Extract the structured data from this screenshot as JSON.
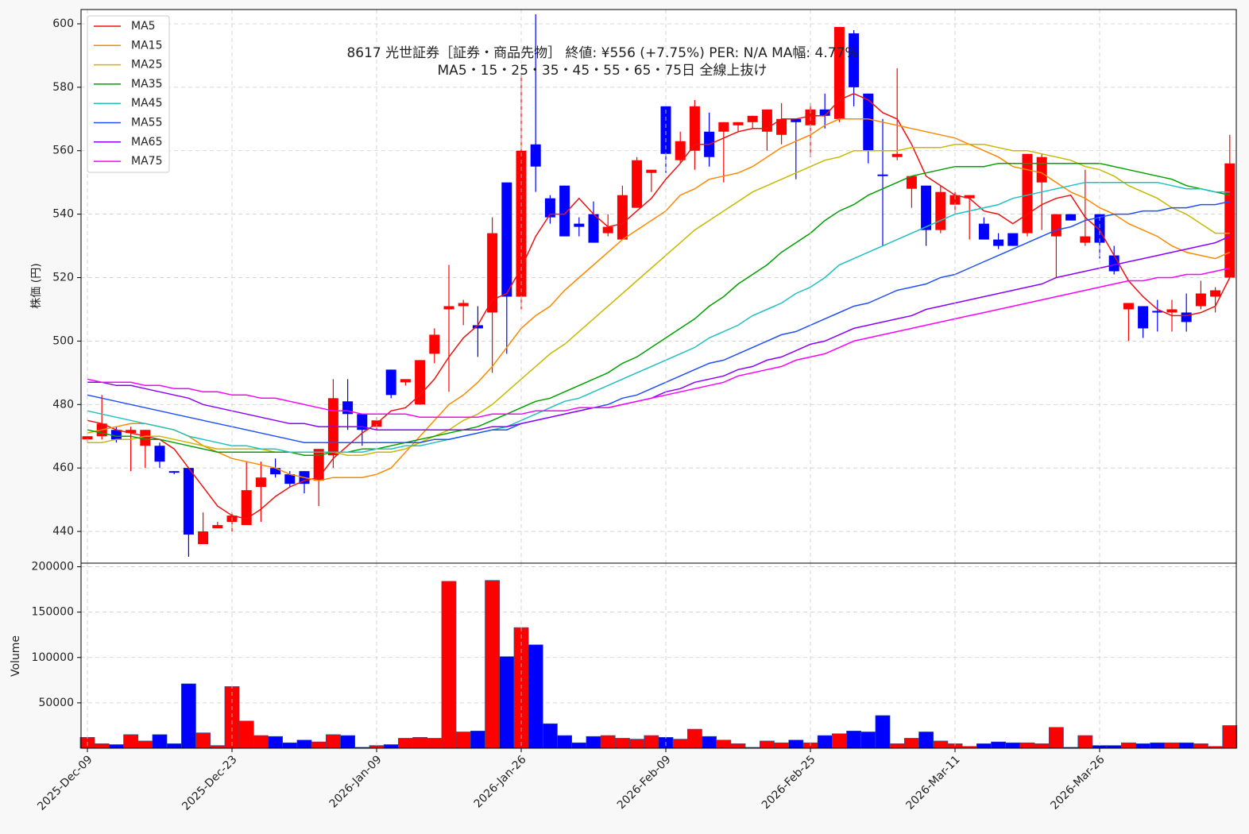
{
  "chart_data": [
    {
      "type": "candlestick",
      "title": "8617  光世証券［証券・商品先物］ 終値: ¥556 (+7.75%)  PER: N/A  MA幅: 4.77%",
      "subtitle": "MA5・15・25・35・45・55・65・75日 全線上抜け",
      "ylabel": "株価 (円)",
      "ylim": [
        430,
        604.5
      ],
      "yticks": [
        440,
        460,
        480,
        500,
        520,
        540,
        560,
        580,
        600
      ],
      "grid": true,
      "legend": "upper left",
      "up_color": "#ff0000",
      "down_color": "#0000ff",
      "open": [
        469,
        470,
        472,
        471,
        467,
        467,
        459,
        460,
        436,
        441,
        443,
        442,
        454,
        460,
        458,
        459,
        456,
        464,
        481,
        477,
        473,
        491,
        487,
        480,
        496,
        510,
        511,
        505,
        509,
        550,
        514,
        562,
        545,
        549,
        537,
        540,
        534,
        532,
        542,
        553,
        574,
        557,
        560,
        566,
        566,
        568,
        569,
        566,
        565,
        570,
        568,
        573,
        570,
        597,
        578,
        552.5,
        558,
        548,
        549,
        535,
        543,
        545,
        537,
        532,
        534,
        534,
        550,
        533,
        540,
        531,
        540,
        527,
        510,
        511,
        509.5,
        509,
        509,
        511,
        514,
        520
      ],
      "high": [
        470,
        483,
        473,
        473,
        472,
        468,
        459,
        460,
        446,
        443,
        446,
        462,
        462,
        463,
        459,
        459,
        466,
        488,
        488,
        477,
        476,
        491,
        488,
        494,
        504,
        524,
        513,
        511,
        539,
        550,
        584,
        603,
        546,
        549,
        539,
        544,
        540,
        549,
        558,
        554,
        574,
        566,
        576,
        572,
        569,
        569,
        571,
        573,
        575,
        570,
        575,
        578,
        599,
        598,
        578,
        570,
        586,
        552,
        549,
        549,
        547,
        546,
        539,
        534,
        534,
        559,
        559,
        540,
        540,
        554,
        540,
        530,
        512,
        511,
        513,
        513,
        515,
        519,
        517,
        565
      ],
      "low": [
        468,
        469,
        468,
        459,
        460,
        460,
        458,
        432,
        436,
        441,
        440,
        442,
        443,
        457,
        454,
        452,
        448,
        460,
        472,
        467,
        472,
        482,
        486,
        480,
        493,
        484,
        505,
        495,
        490,
        496,
        510,
        547,
        537,
        533,
        533,
        531,
        533,
        532,
        542,
        547,
        553,
        556,
        554,
        555,
        550,
        566,
        567,
        560,
        562,
        551,
        558,
        567,
        569,
        574,
        556,
        530,
        557,
        542,
        530,
        534,
        540,
        532,
        532,
        529,
        530,
        533,
        535,
        520,
        538,
        530,
        526,
        521,
        500,
        501,
        503,
        503,
        503,
        510,
        509,
        520
      ],
      "close": [
        470,
        474,
        469,
        472,
        472,
        462,
        458.5,
        439,
        440,
        442,
        445,
        453,
        457,
        458,
        455,
        455,
        466,
        482,
        477,
        472,
        475,
        483,
        488,
        494,
        502,
        511,
        512,
        504,
        534,
        514,
        560,
        555,
        539,
        533,
        536,
        531,
        536,
        546,
        557,
        554,
        559,
        563,
        574,
        558,
        569,
        569,
        571,
        573,
        570,
        569,
        573,
        571,
        599,
        580,
        560,
        552,
        559,
        552,
        535,
        547,
        546,
        546,
        532,
        530,
        530,
        559,
        558,
        540,
        538,
        533,
        531,
        522,
        512,
        504,
        509,
        510,
        506,
        515,
        516,
        556
      ],
      "series": [
        {
          "name": "MA5",
          "color": "#ee1111",
          "values": [
            475,
            474,
            472,
            471,
            470,
            469,
            466,
            460,
            454,
            448,
            445,
            444,
            447,
            451,
            454,
            456,
            457,
            463,
            467,
            471,
            474,
            478,
            479,
            483,
            488,
            495,
            501,
            505,
            513,
            515,
            523,
            533,
            540,
            540,
            545,
            540,
            536,
            537,
            541,
            545,
            551,
            556,
            562,
            562,
            564,
            566,
            567,
            567,
            570,
            570,
            571,
            571,
            576,
            578,
            576,
            572,
            570,
            562,
            552,
            549,
            546,
            545,
            541,
            540,
            537,
            540,
            543,
            545,
            546,
            539,
            535,
            527,
            519,
            514,
            510,
            508,
            508,
            509,
            511,
            520
          ]
        },
        {
          "name": "MA15",
          "color": "#ff8800",
          "values": [
            471,
            472,
            473,
            474,
            474,
            473,
            472,
            470,
            467,
            465,
            463,
            462,
            461,
            460,
            458,
            457,
            456,
            457,
            457,
            457,
            458,
            460,
            465,
            470,
            475,
            480,
            483,
            487,
            492,
            498,
            504,
            508,
            511,
            516,
            520,
            524,
            528,
            532,
            535,
            538,
            541,
            546,
            548,
            551,
            552,
            553,
            555,
            558,
            561,
            563,
            565,
            568,
            570,
            570,
            570,
            569,
            568,
            567,
            566,
            565,
            564,
            562,
            560,
            558,
            555,
            554,
            553,
            550,
            547,
            545,
            542,
            540,
            537,
            535,
            533,
            530,
            528,
            527,
            526,
            528
          ]
        },
        {
          "name": "MA25",
          "color": "#c8b800",
          "values": [
            468,
            468,
            469,
            469,
            470,
            470,
            469,
            468,
            467,
            466,
            466,
            466,
            466,
            465,
            465,
            465,
            465,
            465,
            464,
            464,
            465,
            465,
            466,
            468,
            470,
            472,
            475,
            477,
            480,
            484,
            488,
            492,
            496,
            499,
            503,
            507,
            511,
            515,
            519,
            523,
            527,
            531,
            535,
            538,
            541,
            544,
            547,
            549,
            551,
            553,
            555,
            557,
            558,
            560,
            560,
            560,
            560,
            561,
            561,
            561,
            562,
            562,
            562,
            561,
            560,
            560,
            559,
            558,
            557,
            555,
            554,
            552,
            549,
            547,
            545,
            542,
            540,
            537,
            534,
            534
          ]
        },
        {
          "name": "MA35",
          "color": "#00a000",
          "values": [
            472,
            471,
            470,
            470,
            469,
            469,
            468,
            467,
            466,
            465,
            465,
            465,
            465,
            465,
            465,
            464,
            464,
            465,
            465,
            466,
            466,
            467,
            468,
            469,
            470,
            471,
            472,
            473,
            475,
            477,
            479,
            481,
            482,
            484,
            486,
            488,
            490,
            493,
            495,
            498,
            501,
            504,
            507,
            511,
            514,
            518,
            521,
            524,
            528,
            531,
            534,
            538,
            541,
            543,
            546,
            548,
            550,
            552,
            553,
            554,
            555,
            555,
            555,
            556,
            556,
            556,
            556,
            556,
            556,
            556,
            556,
            555,
            554,
            553,
            552,
            551,
            549,
            548,
            547,
            546
          ]
        },
        {
          "name": "MA45",
          "color": "#20c0c0",
          "values": [
            478,
            477,
            476,
            475,
            474,
            473,
            472,
            470,
            469,
            468,
            467,
            467,
            466,
            466,
            465,
            465,
            465,
            465,
            465,
            465,
            466,
            466,
            467,
            467,
            468,
            469,
            470,
            471,
            472,
            473,
            475,
            477,
            479,
            481,
            482,
            484,
            486,
            488,
            490,
            492,
            494,
            496,
            498,
            501,
            503,
            505,
            508,
            510,
            512,
            515,
            517,
            520,
            524,
            526,
            528,
            530,
            532,
            534,
            536,
            538,
            540,
            541,
            542,
            543,
            545,
            546,
            547,
            548,
            549,
            550,
            550,
            550,
            550,
            550,
            550,
            549,
            548,
            548,
            547,
            547
          ]
        },
        {
          "name": "MA55",
          "color": "#1f4fff",
          "values": [
            483,
            482,
            481,
            480,
            479,
            478,
            477,
            476,
            475,
            474,
            473,
            472,
            471,
            470,
            469,
            468,
            468,
            468,
            468,
            468,
            468,
            468,
            468,
            468,
            469,
            469,
            470,
            471,
            472,
            472,
            474,
            475,
            476,
            477,
            478,
            479,
            480,
            482,
            483,
            485,
            487,
            489,
            491,
            493,
            494,
            496,
            498,
            500,
            502,
            503,
            505,
            507,
            509,
            511,
            512,
            514,
            516,
            517,
            518,
            520,
            521,
            523,
            525,
            527,
            529,
            531,
            533,
            535,
            536,
            538,
            539,
            540,
            540,
            541,
            541,
            542,
            542,
            543,
            543,
            544
          ]
        },
        {
          "name": "MA65",
          "color": "#8a00ff",
          "values": [
            487,
            487,
            486,
            486,
            485,
            484,
            483,
            482,
            480,
            479,
            478,
            477,
            476,
            475,
            474,
            474,
            473,
            473,
            473,
            473,
            472,
            472,
            472,
            472,
            472,
            472,
            472,
            472,
            473,
            473,
            474,
            475,
            476,
            477,
            478,
            479,
            479,
            480,
            481,
            482,
            484,
            485,
            487,
            488,
            489,
            491,
            492,
            494,
            495,
            497,
            499,
            500,
            502,
            504,
            505,
            506,
            507,
            508,
            510,
            511,
            512,
            513,
            514,
            515,
            516,
            517,
            518,
            520,
            521,
            522,
            523,
            524,
            525,
            526,
            527,
            528,
            529,
            530,
            531,
            533
          ]
        },
        {
          "name": "MA75",
          "color": "#ff00ff",
          "values": [
            488,
            487,
            487,
            487,
            486,
            486,
            485,
            485,
            484,
            484,
            483,
            483,
            482,
            482,
            481,
            480,
            479,
            478,
            478,
            477,
            477,
            477,
            477,
            476,
            476,
            476,
            476,
            476,
            477,
            477,
            477,
            478,
            478,
            478,
            479,
            479,
            479,
            480,
            481,
            482,
            483,
            484,
            485,
            486,
            487,
            489,
            490,
            491,
            492,
            494,
            495,
            496,
            498,
            500,
            501,
            502,
            503,
            504,
            505,
            506,
            507,
            508,
            509,
            510,
            511,
            512,
            513,
            514,
            515,
            516,
            517,
            518,
            519,
            519,
            520,
            520,
            521,
            521,
            522,
            523
          ]
        }
      ]
    },
    {
      "type": "bar",
      "ylabel": "Volume",
      "ylim": [
        0,
        204000
      ],
      "yticks": [
        50000,
        100000,
        150000,
        200000
      ],
      "grid": true,
      "categories": [
        "2025-Dec-09",
        null,
        null,
        null,
        null,
        null,
        null,
        null,
        null,
        null,
        "2025-Dec-23",
        null,
        null,
        null,
        null,
        null,
        null,
        null,
        null,
        null,
        "2026-Jan-09",
        null,
        null,
        null,
        null,
        null,
        null,
        null,
        null,
        null,
        "2026-Jan-26",
        null,
        null,
        null,
        null,
        null,
        null,
        null,
        null,
        null,
        "2026-Feb-09",
        null,
        null,
        null,
        null,
        null,
        null,
        null,
        null,
        null,
        "2026-Feb-25",
        null,
        null,
        null,
        null,
        null,
        null,
        null,
        null,
        null,
        "2026-Mar-11",
        null,
        null,
        null,
        null,
        null,
        null,
        null,
        null,
        null,
        "2026-Mar-26",
        null,
        null,
        null,
        null,
        null,
        null,
        null,
        null,
        null
      ],
      "values": [
        12000,
        5000,
        4000,
        15000,
        8000,
        15000,
        5000,
        71000,
        17000,
        3000,
        68000,
        30000,
        14000,
        13000,
        6000,
        9000,
        7000,
        15000,
        14000,
        1000,
        3000,
        4000,
        11000,
        12000,
        11000,
        184000,
        18000,
        19000,
        185000,
        101000,
        133000,
        114000,
        27000,
        14000,
        6000,
        13000,
        14000,
        11000,
        10000,
        14000,
        12000,
        10000,
        21000,
        13000,
        9000,
        5000,
        1000,
        8000,
        6000,
        9000,
        6000,
        14000,
        16000,
        19000,
        18000,
        36000,
        5000,
        11000,
        18000,
        8000,
        5000,
        2000,
        5000,
        7000,
        6000,
        6000,
        5000,
        23000,
        1000,
        14000,
        3000,
        3000,
        6000,
        5000,
        6000,
        6000,
        6000,
        5000,
        2000,
        25000
      ]
    }
  ]
}
